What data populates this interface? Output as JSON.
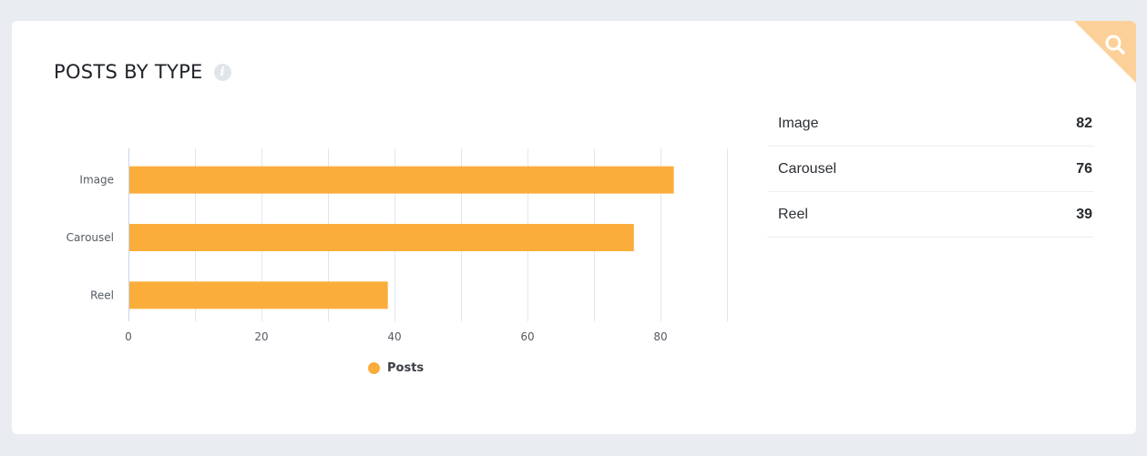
{
  "header": {
    "title": "POSTS BY TYPE",
    "info_icon": "info-icon",
    "corner_icon": "search-icon"
  },
  "colors": {
    "bar": "#fbad3b",
    "corner": "#fbd199",
    "grid": "#e3e6ea",
    "axis": "#c9d4e8"
  },
  "chart_data": {
    "type": "bar",
    "orientation": "horizontal",
    "categories": [
      "Image",
      "Carousel",
      "Reel"
    ],
    "series": [
      {
        "name": "Posts",
        "values": [
          82,
          76,
          39
        ]
      }
    ],
    "xlim": [
      0,
      90
    ],
    "xticks": [
      0,
      20,
      40,
      60,
      80
    ],
    "grid": true,
    "legend": "bottom-center"
  },
  "summary": [
    {
      "label": "Image",
      "value": "82"
    },
    {
      "label": "Carousel",
      "value": "76"
    },
    {
      "label": "Reel",
      "value": "39"
    }
  ]
}
